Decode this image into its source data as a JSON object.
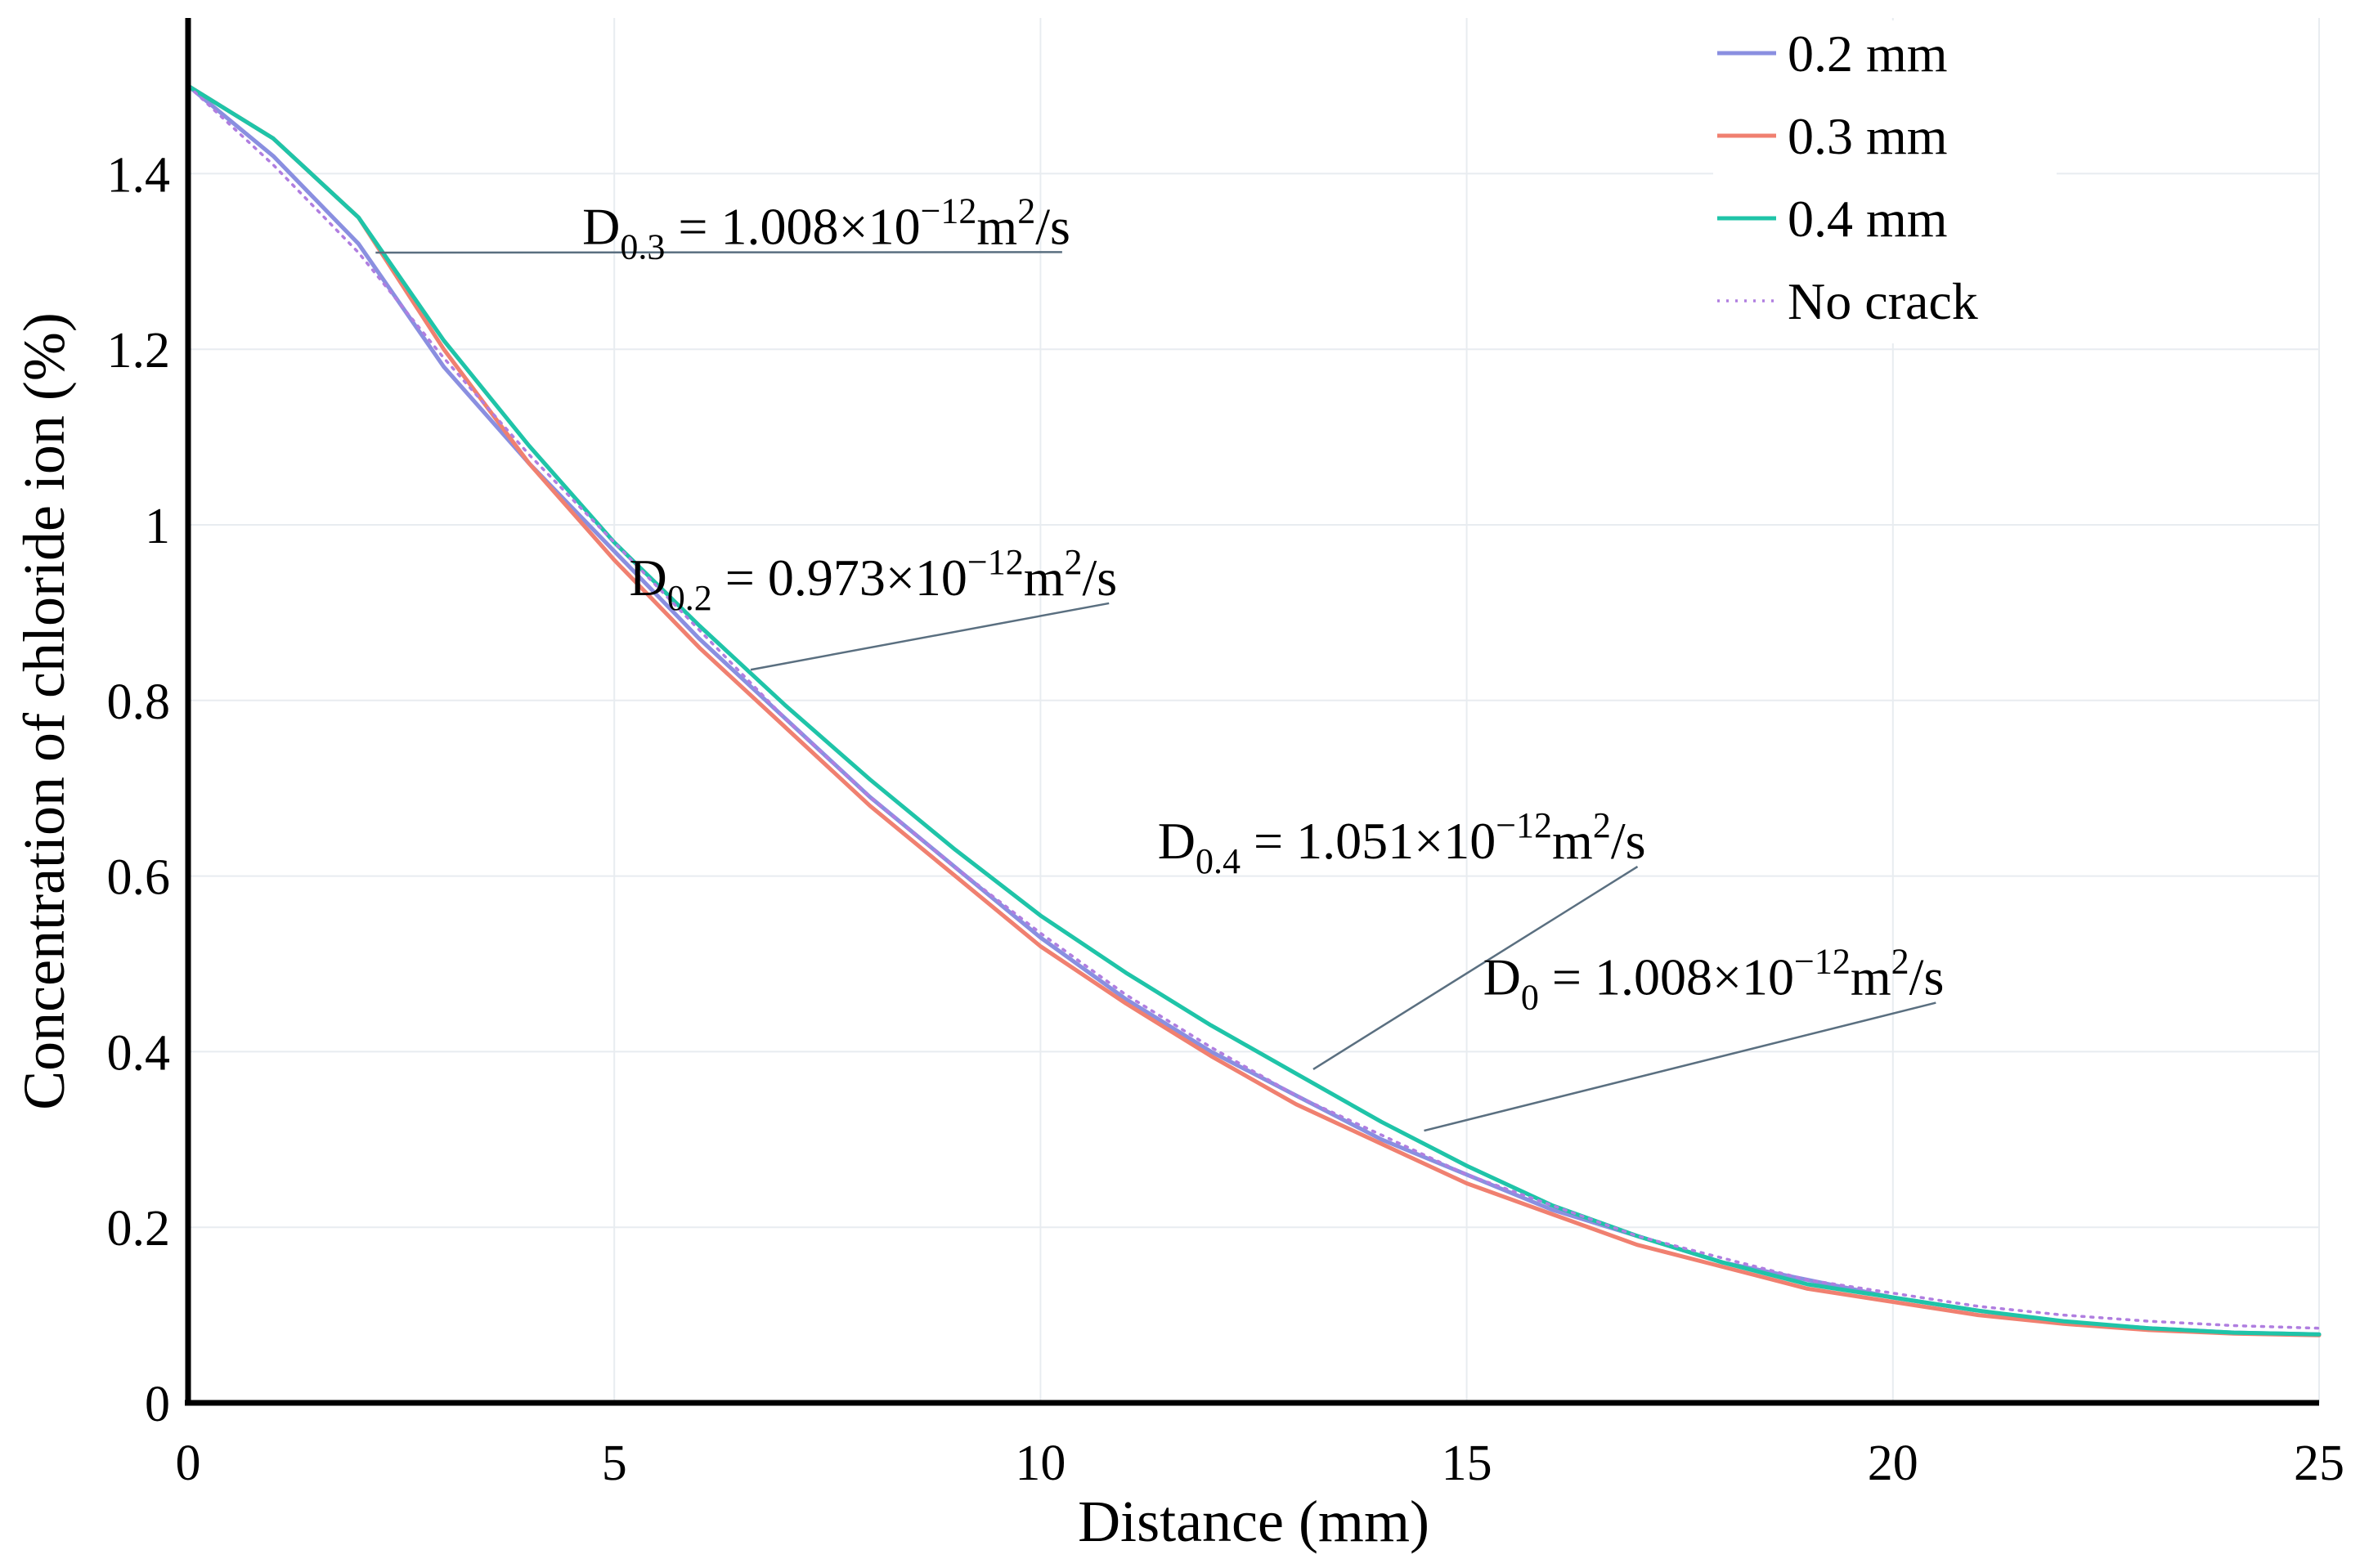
{
  "chart_data": {
    "type": "line",
    "title": "",
    "xlabel": "Distance (mm)",
    "ylabel": "Concentration of chloride ion (%)",
    "xlim": [
      0,
      25
    ],
    "ylim": [
      0,
      1.5
    ],
    "grid": true,
    "legend_position": "top-right",
    "x_ticks": [
      {
        "value": 0,
        "label": "0"
      },
      {
        "value": 5,
        "label": "5"
      },
      {
        "value": 10,
        "label": "10"
      },
      {
        "value": 15,
        "label": "15"
      },
      {
        "value": 20,
        "label": "20"
      },
      {
        "value": 25,
        "label": "25"
      }
    ],
    "y_ticks": [
      {
        "value": 0,
        "label": "0"
      },
      {
        "value": 0.2,
        "label": "0.2"
      },
      {
        "value": 0.4,
        "label": "0.4"
      },
      {
        "value": 0.6,
        "label": "0.6"
      },
      {
        "value": 0.8,
        "label": "0.8"
      },
      {
        "value": 1.0,
        "label": "1"
      },
      {
        "value": 1.2,
        "label": "1.2"
      },
      {
        "value": 1.4,
        "label": "1.4"
      }
    ],
    "x": [
      0,
      1,
      2,
      3,
      4,
      5,
      6,
      7,
      8,
      9,
      10,
      11,
      12,
      13,
      14,
      15,
      16,
      17,
      18,
      19,
      20,
      21,
      22,
      23,
      24,
      25
    ],
    "series": [
      {
        "name": "0.2 mm",
        "color": "#8a8fe0",
        "dash": "solid",
        "values": [
          1.5,
          1.42,
          1.32,
          1.18,
          1.07,
          0.97,
          0.87,
          0.78,
          0.69,
          0.61,
          0.53,
          0.46,
          0.4,
          0.35,
          0.3,
          0.26,
          0.22,
          0.19,
          0.16,
          0.14,
          0.12,
          0.105,
          0.092,
          0.085,
          0.08,
          0.078
        ]
      },
      {
        "name": "0.3 mm",
        "color": "#f08070",
        "dash": "solid",
        "values": [
          1.5,
          1.44,
          1.35,
          1.2,
          1.07,
          0.96,
          0.86,
          0.77,
          0.68,
          0.6,
          0.52,
          0.455,
          0.395,
          0.34,
          0.295,
          0.25,
          0.215,
          0.18,
          0.155,
          0.13,
          0.115,
          0.1,
          0.09,
          0.083,
          0.079,
          0.077
        ]
      },
      {
        "name": "0.4 mm",
        "color": "#1fc4a8",
        "dash": "solid",
        "values": [
          1.5,
          1.44,
          1.35,
          1.21,
          1.09,
          0.98,
          0.885,
          0.795,
          0.71,
          0.63,
          0.555,
          0.49,
          0.43,
          0.375,
          0.32,
          0.27,
          0.225,
          0.19,
          0.16,
          0.135,
          0.12,
          0.105,
          0.093,
          0.085,
          0.08,
          0.078
        ]
      },
      {
        "name": "No crack",
        "color": "#b07ee0",
        "dash": "dotted",
        "values": [
          1.5,
          1.41,
          1.31,
          1.19,
          1.08,
          0.98,
          0.88,
          0.78,
          0.69,
          0.61,
          0.535,
          0.465,
          0.405,
          0.35,
          0.305,
          0.26,
          0.225,
          0.19,
          0.165,
          0.14,
          0.125,
          0.11,
          0.1,
          0.093,
          0.088,
          0.085
        ]
      }
    ],
    "annotations": [
      {
        "main": "D",
        "sub": "0.3",
        "eq": " = 1.008×10",
        "exp": "−12",
        "unit": "m",
        "unit_exp": "2",
        "tail": "/s",
        "text_x": 10.35,
        "text_y": 1.32,
        "point_x": 2.2,
        "point_y": 1.31
      },
      {
        "main": "D",
        "sub": "0.2",
        "eq": " = 0.973×10",
        "exp": "−12",
        "unit": "m",
        "unit_exp": "2",
        "tail": "/s",
        "text_x": 10.9,
        "text_y": 0.92,
        "point_x": 6.6,
        "point_y": 0.835
      },
      {
        "main": "D",
        "sub": "0.4",
        "eq": " = 1.051×10",
        "exp": "−12",
        "unit": "m",
        "unit_exp": "2",
        "tail": "/s",
        "text_x": 17.1,
        "text_y": 0.62,
        "point_x": 13.2,
        "point_y": 0.38
      },
      {
        "main": "D",
        "sub": "0",
        "eq": " = 1.008×10",
        "exp": "−12",
        "unit": "m",
        "unit_exp": "2",
        "tail": "/s",
        "text_x": 20.6,
        "text_y": 0.465,
        "point_x": 14.5,
        "point_y": 0.31
      }
    ]
  }
}
